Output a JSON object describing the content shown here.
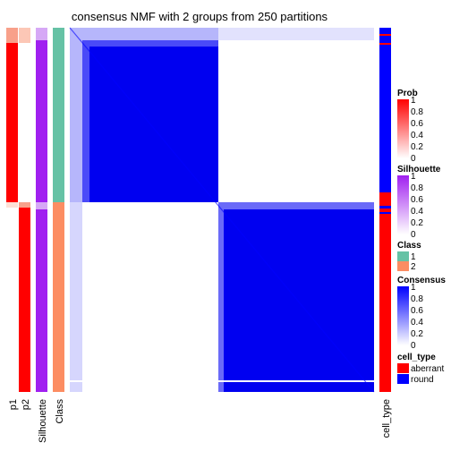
{
  "chart_data": {
    "type": "heatmap",
    "title": "consensus NMF with 2 groups from 250 partitions",
    "row_annotation_labels": [
      "p1",
      "p2",
      "Silhouette",
      "Class"
    ],
    "column_annotation_label": "cell_type",
    "groups": {
      "1": {
        "fraction": 0.48
      },
      "2": {
        "fraction": 0.52
      }
    },
    "consensus_within_group": 1,
    "consensus_between_groups": 0,
    "legends": [
      {
        "title": "Prob",
        "ticks": [
          "1",
          "0.8",
          "0.6",
          "0.4",
          "0.2",
          "0"
        ],
        "colors": [
          "#ffffff",
          "#ff0000"
        ]
      },
      {
        "title": "Silhouette",
        "ticks": [
          "1",
          "0.8",
          "0.6",
          "0.4",
          "0.2",
          "0"
        ],
        "colors": [
          "#ffffff",
          "#a020f0"
        ]
      },
      {
        "title": "Class",
        "items": [
          {
            "label": "1",
            "color": "#66c2a5"
          },
          {
            "label": "2",
            "color": "#fc8d62"
          }
        ]
      },
      {
        "title": "Consensus",
        "ticks": [
          "1",
          "0.8",
          "0.6",
          "0.4",
          "0.2",
          "0"
        ],
        "colors": [
          "#ffffff",
          "#0000ff"
        ]
      },
      {
        "title": "cell_type",
        "items": [
          {
            "label": "aberrant",
            "color": "#ff0000"
          },
          {
            "label": "round",
            "color": "#0000ff"
          }
        ]
      }
    ]
  },
  "colors": {
    "prob_high": "#ff0000",
    "prob_mid": "#f8a08a",
    "silhouette": "#a020f0",
    "silhouette_light": "#d6a8f6",
    "class1": "#66c2a5",
    "class2": "#fc8d62",
    "consensus": "#0000ff",
    "aberrant": "#ff0000",
    "round": "#0000ff"
  }
}
